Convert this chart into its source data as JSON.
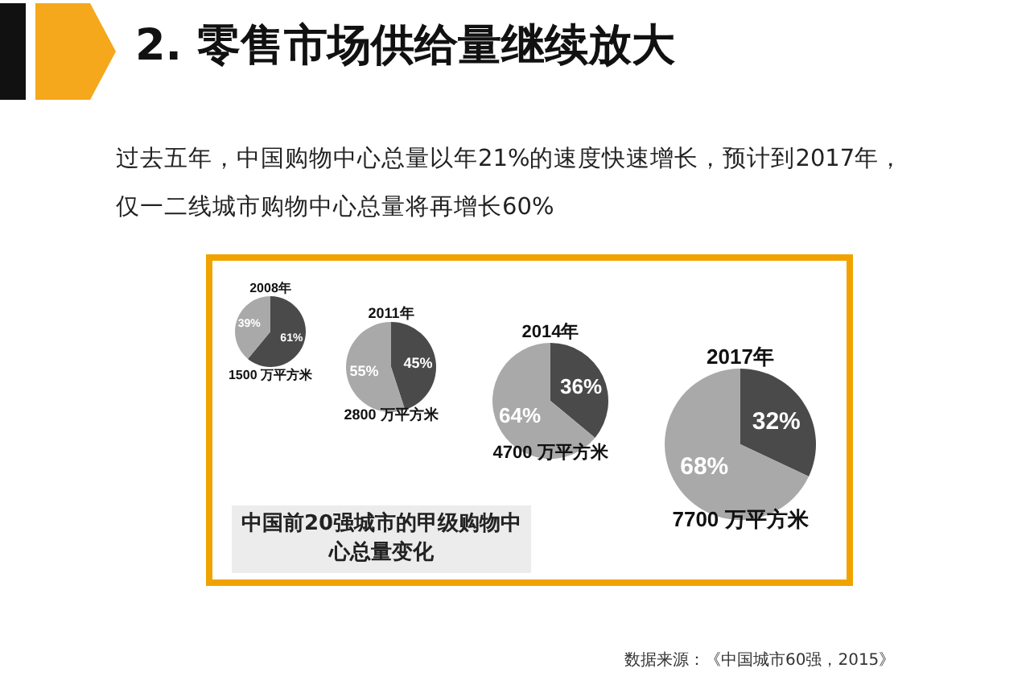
{
  "chart_data": [
    {
      "type": "other",
      "title": "2. 零售市场供给量继续放大",
      "subtitle": "过去五年，中国购物中心总量以年21%的速度快速增长，预计到2017年，仅一二线城市购物中心总量将再增长60%",
      "annotations": [
        "中国前20强城市的甲级购物中心总量变化",
        "数据来源：《中国城市60强，2015》"
      ]
    },
    {
      "type": "pie",
      "title": "2008年",
      "subtitle": "1500 万平方米",
      "categories": [
        null,
        null
      ],
      "values": [
        61,
        39
      ],
      "value_labels": [
        "61%",
        "39%"
      ],
      "colors": [
        "#4a4a4a",
        "#a9a9a9"
      ]
    },
    {
      "type": "pie",
      "title": "2011年",
      "subtitle": "2800 万平方米",
      "categories": [
        null,
        null
      ],
      "values": [
        45,
        55
      ],
      "value_labels": [
        "45%",
        "55%"
      ],
      "colors": [
        "#4a4a4a",
        "#a9a9a9"
      ]
    },
    {
      "type": "pie",
      "title": "2014年",
      "subtitle": "4700 万平方米",
      "categories": [
        null,
        null
      ],
      "values": [
        36,
        64
      ],
      "value_labels": [
        "36%",
        "64%"
      ],
      "colors": [
        "#4a4a4a",
        "#a9a9a9"
      ]
    },
    {
      "type": "pie",
      "title": "2017年",
      "subtitle": "7700 万平方米",
      "categories": [
        null,
        null
      ],
      "values": [
        32,
        68
      ],
      "value_labels": [
        "32%",
        "68%"
      ],
      "colors": [
        "#4a4a4a",
        "#a9a9a9"
      ]
    }
  ]
}
